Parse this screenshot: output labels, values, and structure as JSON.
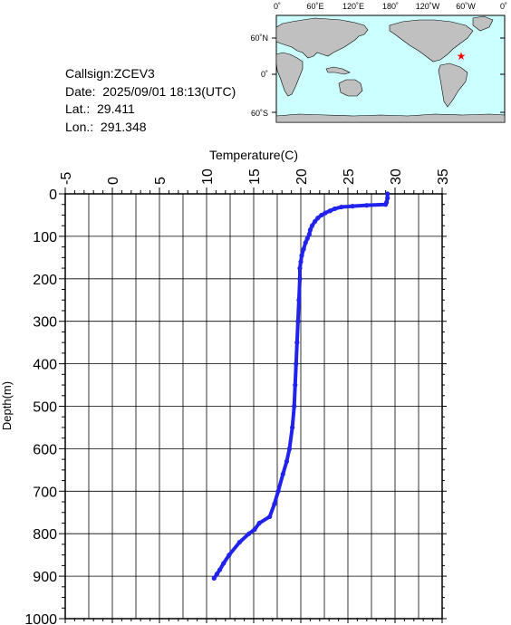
{
  "info": {
    "callsign": "Callsign:ZCEV3",
    "date": "Date:  2025/09/01 18:13(UTC)",
    "lat": "Lat.:  29.411",
    "lon": "Lon.:  291.348"
  },
  "map": {
    "lon_ticks": [
      "0˚",
      "60˚E",
      "120˚E",
      "180˚",
      "120˚W",
      "60˚W",
      "0˚"
    ],
    "lat_ticks": [
      "60˚N",
      "0˚",
      "60˚S"
    ],
    "marker": {
      "lon": 291.348,
      "lat": 29.411,
      "color": "#ff0000"
    },
    "ocean_color": "#ccffff",
    "land_color": "#c0c0c0"
  },
  "chart_data": {
    "type": "line",
    "title": "",
    "xlabel": "Temperature(C)",
    "ylabel": "Depth(m)",
    "xlim": [
      -5,
      35
    ],
    "ylim": [
      0,
      1000
    ],
    "y_inverted": true,
    "x_axis_position": "top",
    "x_ticks": [
      "-5",
      "0",
      "5",
      "10",
      "15",
      "20",
      "25",
      "30",
      "35"
    ],
    "y_ticks": [
      "0",
      "100",
      "200",
      "300",
      "400",
      "500",
      "600",
      "700",
      "800",
      "900",
      "1000"
    ],
    "grid": true,
    "series": [
      {
        "color": "#2222ee",
        "points": [
          [
            29.2,
            0
          ],
          [
            29.2,
            10
          ],
          [
            29.1,
            20
          ],
          [
            29.0,
            25
          ],
          [
            27.0,
            27
          ],
          [
            25.5,
            29
          ],
          [
            24.3,
            31
          ],
          [
            23.6,
            35
          ],
          [
            23.1,
            40
          ],
          [
            22.6,
            45
          ],
          [
            22.2,
            50
          ],
          [
            21.8,
            57
          ],
          [
            21.5,
            65
          ],
          [
            21.2,
            75
          ],
          [
            21.0,
            85
          ],
          [
            20.9,
            95
          ],
          [
            20.7,
            105
          ],
          [
            20.5,
            115
          ],
          [
            20.3,
            130
          ],
          [
            20.1,
            145
          ],
          [
            20.0,
            160
          ],
          [
            19.9,
            175
          ],
          [
            19.9,
            200
          ],
          [
            19.8,
            250
          ],
          [
            19.7,
            300
          ],
          [
            19.6,
            350
          ],
          [
            19.5,
            400
          ],
          [
            19.4,
            450
          ],
          [
            19.3,
            500
          ],
          [
            19.1,
            550
          ],
          [
            18.8,
            600
          ],
          [
            18.5,
            630
          ],
          [
            18.1,
            660
          ],
          [
            17.6,
            700
          ],
          [
            17.2,
            730
          ],
          [
            16.7,
            760
          ],
          [
            15.6,
            775
          ],
          [
            15.1,
            790
          ],
          [
            14.5,
            800
          ],
          [
            13.5,
            820
          ],
          [
            12.4,
            850
          ],
          [
            11.8,
            870
          ],
          [
            11.4,
            885
          ],
          [
            11.1,
            895
          ],
          [
            10.8,
            905
          ]
        ]
      }
    ]
  }
}
